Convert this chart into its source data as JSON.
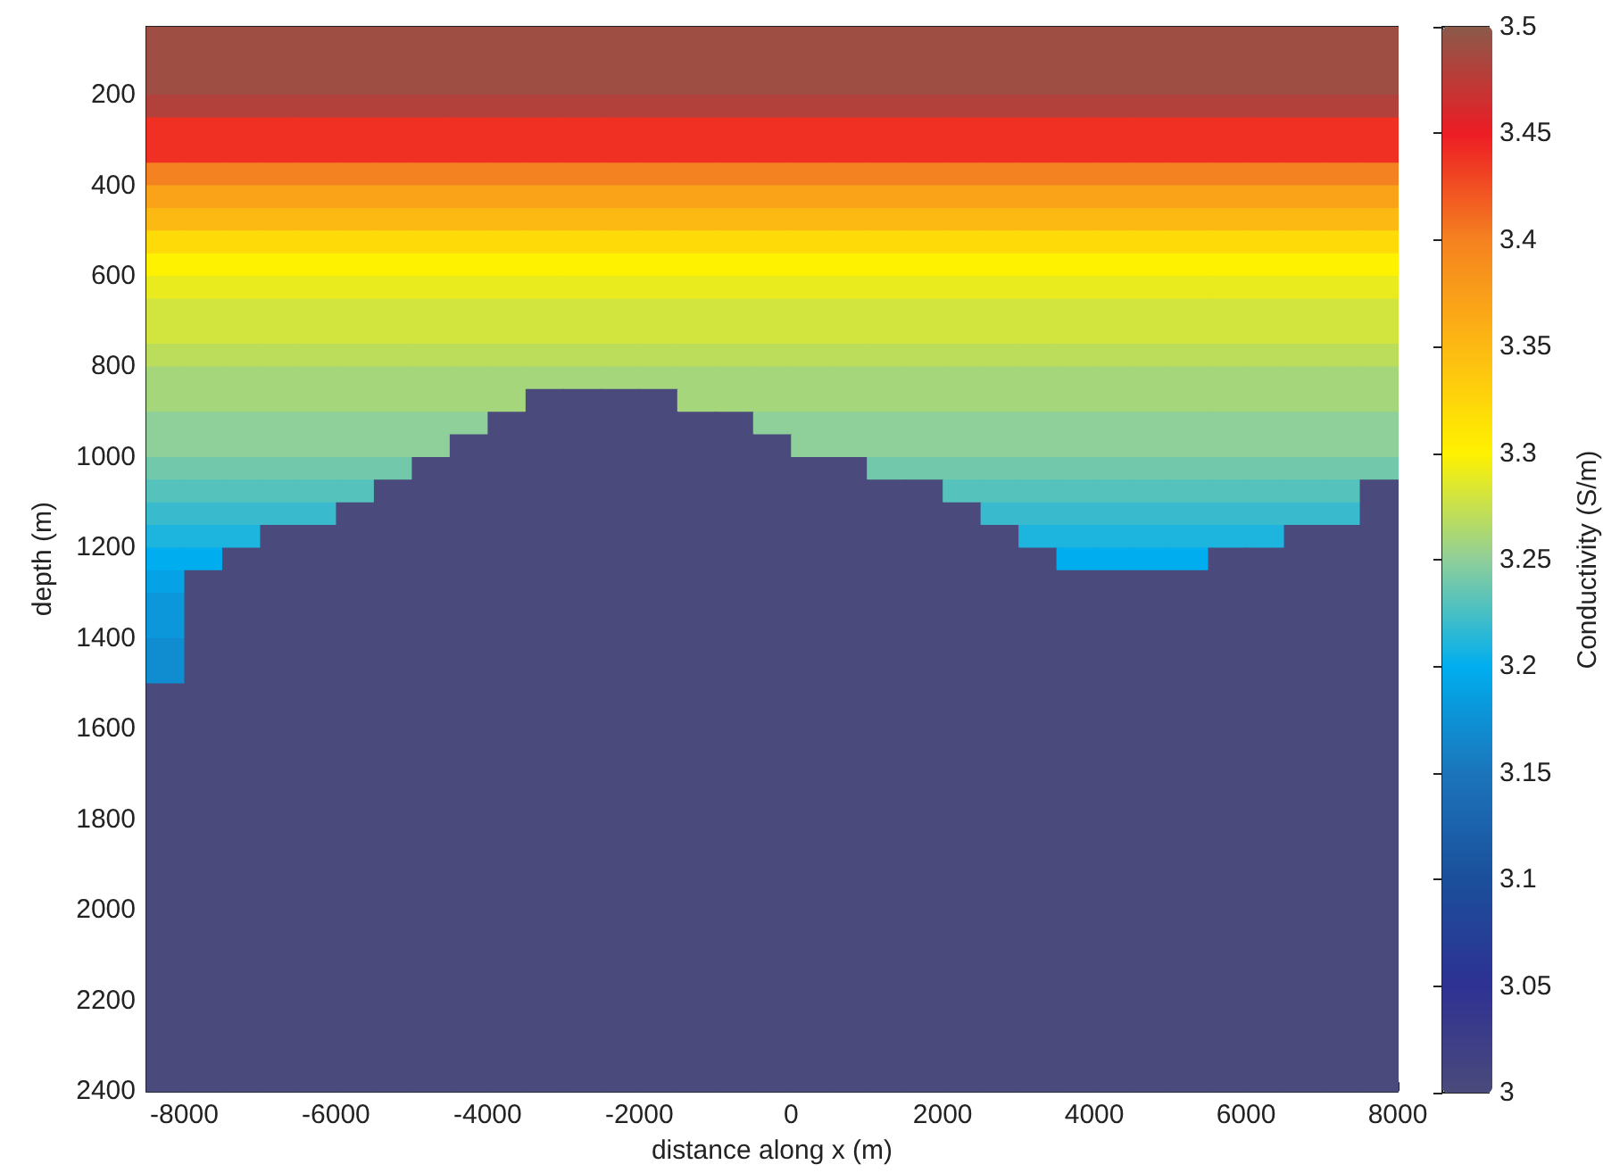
{
  "chart_data": {
    "type": "heatmap",
    "xlabel": "distance along x (m)",
    "ylabel": "depth (m)",
    "clabel": "Conductivity (S/m)",
    "xlim": [
      -8500,
      8000
    ],
    "xticks": [
      -8000,
      -6000,
      -4000,
      -2000,
      0,
      2000,
      4000,
      6000,
      8000
    ],
    "ylim": [
      2400,
      50
    ],
    "yticks": [
      200,
      400,
      600,
      800,
      1000,
      1200,
      1400,
      1600,
      1800,
      2000,
      2200,
      2400
    ],
    "clim": [
      3,
      3.5
    ],
    "cticks": [
      3,
      3.05,
      3.1,
      3.15,
      3.2,
      3.25,
      3.3,
      3.35,
      3.4,
      3.45,
      3.5
    ],
    "x": [
      -8250,
      -7750,
      -7250,
      -6750,
      -6250,
      -5750,
      -5250,
      -4750,
      -4250,
      -3750,
      -3250,
      -2750,
      -2250,
      -1750,
      -1250,
      -750,
      -250,
      250,
      750,
      1250,
      1750,
      2250,
      2750,
      3250,
      3750,
      4250,
      4750,
      5250,
      5750,
      6250,
      6750,
      7250,
      7750
    ],
    "y": [
      75,
      125,
      175,
      225,
      275,
      325,
      375,
      425,
      475,
      525,
      575,
      625,
      675,
      725,
      775,
      825,
      875,
      925,
      975,
      1025,
      1075,
      1125,
      1175,
      1225,
      1275,
      1325,
      1375,
      1425,
      1475,
      1525,
      1575,
      1625,
      1675,
      1725,
      1775,
      1825,
      1875,
      1925,
      1975,
      2025,
      2075,
      2125,
      2175,
      2225,
      2275,
      2325,
      2375
    ],
    "cells": [
      [
        3.49,
        3.49,
        3.49,
        3.49,
        3.49,
        3.49,
        3.49,
        3.49,
        3.49,
        3.49,
        3.49,
        3.49,
        3.49,
        3.49,
        3.49,
        3.49,
        3.49,
        3.49,
        3.49,
        3.49,
        3.49,
        3.49,
        3.49,
        3.49,
        3.49,
        3.49,
        3.49,
        3.49,
        3.49,
        3.49,
        3.49,
        3.49,
        3.49
      ],
      [
        3.49,
        3.49,
        3.49,
        3.49,
        3.49,
        3.49,
        3.49,
        3.49,
        3.49,
        3.49,
        3.49,
        3.49,
        3.49,
        3.49,
        3.49,
        3.49,
        3.49,
        3.49,
        3.49,
        3.49,
        3.49,
        3.49,
        3.49,
        3.49,
        3.49,
        3.49,
        3.49,
        3.49,
        3.49,
        3.49,
        3.49,
        3.49,
        3.49
      ],
      [
        3.49,
        3.49,
        3.49,
        3.49,
        3.49,
        3.49,
        3.49,
        3.49,
        3.49,
        3.49,
        3.49,
        3.49,
        3.49,
        3.49,
        3.49,
        3.49,
        3.49,
        3.49,
        3.49,
        3.49,
        3.49,
        3.49,
        3.49,
        3.49,
        3.49,
        3.49,
        3.49,
        3.49,
        3.49,
        3.49,
        3.49,
        3.49,
        3.49
      ],
      [
        3.48,
        3.48,
        3.48,
        3.48,
        3.48,
        3.48,
        3.48,
        3.48,
        3.48,
        3.48,
        3.48,
        3.48,
        3.48,
        3.48,
        3.48,
        3.48,
        3.48,
        3.48,
        3.48,
        3.48,
        3.48,
        3.48,
        3.48,
        3.48,
        3.48,
        3.48,
        3.48,
        3.48,
        3.48,
        3.48,
        3.48,
        3.48,
        3.48
      ],
      [
        3.44,
        3.44,
        3.44,
        3.44,
        3.44,
        3.44,
        3.44,
        3.44,
        3.44,
        3.44,
        3.44,
        3.44,
        3.44,
        3.44,
        3.44,
        3.44,
        3.44,
        3.44,
        3.44,
        3.44,
        3.44,
        3.44,
        3.44,
        3.44,
        3.44,
        3.44,
        3.44,
        3.44,
        3.44,
        3.44,
        3.44,
        3.44,
        3.44
      ],
      [
        3.44,
        3.44,
        3.44,
        3.44,
        3.44,
        3.44,
        3.44,
        3.44,
        3.44,
        3.44,
        3.44,
        3.44,
        3.44,
        3.44,
        3.44,
        3.44,
        3.44,
        3.44,
        3.44,
        3.44,
        3.44,
        3.44,
        3.44,
        3.44,
        3.44,
        3.44,
        3.44,
        3.44,
        3.44,
        3.44,
        3.44,
        3.44,
        3.44
      ],
      [
        3.4,
        3.4,
        3.4,
        3.4,
        3.4,
        3.4,
        3.4,
        3.4,
        3.4,
        3.4,
        3.4,
        3.4,
        3.4,
        3.4,
        3.4,
        3.4,
        3.4,
        3.4,
        3.4,
        3.4,
        3.4,
        3.4,
        3.4,
        3.4,
        3.4,
        3.4,
        3.4,
        3.4,
        3.4,
        3.4,
        3.4,
        3.4,
        3.4
      ],
      [
        3.37,
        3.37,
        3.37,
        3.37,
        3.37,
        3.37,
        3.37,
        3.37,
        3.37,
        3.37,
        3.37,
        3.37,
        3.37,
        3.37,
        3.37,
        3.37,
        3.37,
        3.37,
        3.37,
        3.37,
        3.37,
        3.37,
        3.37,
        3.37,
        3.37,
        3.37,
        3.37,
        3.37,
        3.37,
        3.37,
        3.37,
        3.37,
        3.37
      ],
      [
        3.35,
        3.35,
        3.35,
        3.35,
        3.35,
        3.35,
        3.35,
        3.35,
        3.35,
        3.35,
        3.35,
        3.35,
        3.35,
        3.35,
        3.35,
        3.35,
        3.35,
        3.35,
        3.35,
        3.35,
        3.35,
        3.35,
        3.35,
        3.35,
        3.35,
        3.35,
        3.35,
        3.35,
        3.35,
        3.35,
        3.35,
        3.35,
        3.35
      ],
      [
        3.32,
        3.32,
        3.32,
        3.32,
        3.32,
        3.32,
        3.32,
        3.32,
        3.32,
        3.32,
        3.32,
        3.32,
        3.32,
        3.32,
        3.32,
        3.32,
        3.32,
        3.32,
        3.32,
        3.32,
        3.32,
        3.32,
        3.32,
        3.32,
        3.32,
        3.32,
        3.32,
        3.32,
        3.32,
        3.32,
        3.32,
        3.32,
        3.32
      ],
      [
        3.3,
        3.3,
        3.3,
        3.3,
        3.3,
        3.3,
        3.3,
        3.3,
        3.3,
        3.3,
        3.3,
        3.3,
        3.3,
        3.3,
        3.3,
        3.3,
        3.3,
        3.3,
        3.3,
        3.3,
        3.3,
        3.3,
        3.3,
        3.3,
        3.3,
        3.3,
        3.3,
        3.3,
        3.3,
        3.3,
        3.3,
        3.3,
        3.3
      ],
      [
        3.29,
        3.29,
        3.29,
        3.29,
        3.29,
        3.29,
        3.29,
        3.29,
        3.29,
        3.29,
        3.29,
        3.29,
        3.29,
        3.29,
        3.29,
        3.29,
        3.29,
        3.29,
        3.29,
        3.29,
        3.29,
        3.29,
        3.29,
        3.29,
        3.29,
        3.29,
        3.29,
        3.29,
        3.29,
        3.29,
        3.29,
        3.29,
        3.29
      ],
      [
        3.28,
        3.28,
        3.28,
        3.28,
        3.28,
        3.28,
        3.28,
        3.28,
        3.28,
        3.28,
        3.28,
        3.28,
        3.28,
        3.28,
        3.28,
        3.28,
        3.28,
        3.28,
        3.28,
        3.28,
        3.28,
        3.28,
        3.28,
        3.28,
        3.28,
        3.28,
        3.28,
        3.28,
        3.28,
        3.28,
        3.28,
        3.28,
        3.28
      ],
      [
        3.28,
        3.28,
        3.28,
        3.28,
        3.28,
        3.28,
        3.28,
        3.28,
        3.28,
        3.28,
        3.28,
        3.28,
        3.28,
        3.28,
        3.28,
        3.28,
        3.28,
        3.28,
        3.28,
        3.28,
        3.28,
        3.28,
        3.28,
        3.28,
        3.28,
        3.28,
        3.28,
        3.28,
        3.28,
        3.28,
        3.28,
        3.28,
        3.28
      ],
      [
        3.27,
        3.27,
        3.27,
        3.27,
        3.27,
        3.27,
        3.27,
        3.27,
        3.27,
        3.27,
        3.27,
        3.27,
        3.27,
        3.27,
        3.27,
        3.27,
        3.27,
        3.27,
        3.27,
        3.27,
        3.27,
        3.27,
        3.27,
        3.27,
        3.27,
        3.27,
        3.27,
        3.27,
        3.27,
        3.27,
        3.27,
        3.27,
        3.27
      ],
      [
        3.26,
        3.26,
        3.26,
        3.26,
        3.26,
        3.26,
        3.26,
        3.26,
        3.26,
        3.26,
        3.26,
        3.26,
        3.26,
        3.26,
        3.26,
        3.26,
        3.26,
        3.26,
        3.26,
        3.26,
        3.26,
        3.26,
        3.26,
        3.26,
        3.26,
        3.26,
        3.26,
        3.26,
        3.26,
        3.26,
        3.26,
        3.26,
        3.26
      ],
      [
        3.26,
        3.26,
        3.26,
        3.26,
        3.26,
        3.26,
        3.26,
        3.26,
        3.26,
        3.26,
        3,
        3,
        3,
        3,
        3.26,
        3.26,
        3.26,
        3.26,
        3.26,
        3.26,
        3.26,
        3.26,
        3.26,
        3.26,
        3.26,
        3.26,
        3.26,
        3.26,
        3.26,
        3.26,
        3.26,
        3.26,
        3.26
      ],
      [
        3.25,
        3.25,
        3.25,
        3.25,
        3.25,
        3.25,
        3.25,
        3.25,
        3.25,
        3,
        3,
        3,
        3,
        3,
        3,
        3,
        3.25,
        3.25,
        3.25,
        3.25,
        3.25,
        3.25,
        3.25,
        3.25,
        3.25,
        3.25,
        3.25,
        3.25,
        3.25,
        3.25,
        3.25,
        3.25,
        3.25
      ],
      [
        3.25,
        3.25,
        3.25,
        3.25,
        3.25,
        3.25,
        3.25,
        3.25,
        3,
        3,
        3,
        3,
        3,
        3,
        3,
        3,
        3,
        3.25,
        3.25,
        3.25,
        3.25,
        3.25,
        3.25,
        3.25,
        3.25,
        3.25,
        3.25,
        3.25,
        3.25,
        3.25,
        3.25,
        3.25,
        3.25
      ],
      [
        3.24,
        3.24,
        3.24,
        3.24,
        3.24,
        3.24,
        3.24,
        3,
        3,
        3,
        3,
        3,
        3,
        3,
        3,
        3,
        3,
        3,
        3,
        3.24,
        3.24,
        3.24,
        3.24,
        3.24,
        3.24,
        3.24,
        3.24,
        3.24,
        3.24,
        3.24,
        3.24,
        3.24,
        3.24
      ],
      [
        3.23,
        3.23,
        3.23,
        3.23,
        3.23,
        3.23,
        3,
        3,
        3,
        3,
        3,
        3,
        3,
        3,
        3,
        3,
        3,
        3,
        3,
        3,
        3,
        3.23,
        3.23,
        3.23,
        3.23,
        3.23,
        3.23,
        3.23,
        3.23,
        3.23,
        3.23,
        3.23,
        3
      ],
      [
        3.22,
        3.22,
        3.22,
        3.22,
        3.22,
        3,
        3,
        3,
        3,
        3,
        3,
        3,
        3,
        3,
        3,
        3,
        3,
        3,
        3,
        3,
        3,
        3,
        3.22,
        3.22,
        3.22,
        3.22,
        3.22,
        3.22,
        3.22,
        3.22,
        3.22,
        3.22,
        3
      ],
      [
        3.21,
        3.21,
        3.21,
        3,
        3,
        3,
        3,
        3,
        3,
        3,
        3,
        3,
        3,
        3,
        3,
        3,
        3,
        3,
        3,
        3,
        3,
        3,
        3,
        3.21,
        3.21,
        3.21,
        3.21,
        3.21,
        3.21,
        3.21,
        3,
        3,
        3
      ],
      [
        3.2,
        3.2,
        3,
        3,
        3,
        3,
        3,
        3,
        3,
        3,
        3,
        3,
        3,
        3,
        3,
        3,
        3,
        3,
        3,
        3,
        3,
        3,
        3,
        3,
        3.2,
        3.2,
        3.2,
        3.2,
        3,
        3,
        3,
        3,
        3
      ],
      [
        3.19,
        3,
        3,
        3,
        3,
        3,
        3,
        3,
        3,
        3,
        3,
        3,
        3,
        3,
        3,
        3,
        3,
        3,
        3,
        3,
        3,
        3,
        3,
        3,
        3,
        3,
        3,
        3,
        3,
        3,
        3,
        3,
        3
      ],
      [
        3.18,
        3,
        3,
        3,
        3,
        3,
        3,
        3,
        3,
        3,
        3,
        3,
        3,
        3,
        3,
        3,
        3,
        3,
        3,
        3,
        3,
        3,
        3,
        3,
        3,
        3,
        3,
        3,
        3,
        3,
        3,
        3,
        3
      ],
      [
        3.18,
        3,
        3,
        3,
        3,
        3,
        3,
        3,
        3,
        3,
        3,
        3,
        3,
        3,
        3,
        3,
        3,
        3,
        3,
        3,
        3,
        3,
        3,
        3,
        3,
        3,
        3,
        3,
        3,
        3,
        3,
        3,
        3
      ],
      [
        3.17,
        3,
        3,
        3,
        3,
        3,
        3,
        3,
        3,
        3,
        3,
        3,
        3,
        3,
        3,
        3,
        3,
        3,
        3,
        3,
        3,
        3,
        3,
        3,
        3,
        3,
        3,
        3,
        3,
        3,
        3,
        3,
        3
      ],
      [
        3.17,
        3,
        3,
        3,
        3,
        3,
        3,
        3,
        3,
        3,
        3,
        3,
        3,
        3,
        3,
        3,
        3,
        3,
        3,
        3,
        3,
        3,
        3,
        3,
        3,
        3,
        3,
        3,
        3,
        3,
        3,
        3,
        3
      ],
      [
        3,
        3,
        3,
        3,
        3,
        3,
        3,
        3,
        3,
        3,
        3,
        3,
        3,
        3,
        3,
        3,
        3,
        3,
        3,
        3,
        3,
        3,
        3,
        3,
        3,
        3,
        3,
        3,
        3,
        3,
        3,
        3,
        3
      ],
      [
        3,
        3,
        3,
        3,
        3,
        3,
        3,
        3,
        3,
        3,
        3,
        3,
        3,
        3,
        3,
        3,
        3,
        3,
        3,
        3,
        3,
        3,
        3,
        3,
        3,
        3,
        3,
        3,
        3,
        3,
        3,
        3,
        3
      ],
      [
        3,
        3,
        3,
        3,
        3,
        3,
        3,
        3,
        3,
        3,
        3,
        3,
        3,
        3,
        3,
        3,
        3,
        3,
        3,
        3,
        3,
        3,
        3,
        3,
        3,
        3,
        3,
        3,
        3,
        3,
        3,
        3,
        3
      ],
      [
        3,
        3,
        3,
        3,
        3,
        3,
        3,
        3,
        3,
        3,
        3,
        3,
        3,
        3,
        3,
        3,
        3,
        3,
        3,
        3,
        3,
        3,
        3,
        3,
        3,
        3,
        3,
        3,
        3,
        3,
        3,
        3,
        3
      ],
      [
        3,
        3,
        3,
        3,
        3,
        3,
        3,
        3,
        3,
        3,
        3,
        3,
        3,
        3,
        3,
        3,
        3,
        3,
        3,
        3,
        3,
        3,
        3,
        3,
        3,
        3,
        3,
        3,
        3,
        3,
        3,
        3,
        3
      ],
      [
        3,
        3,
        3,
        3,
        3,
        3,
        3,
        3,
        3,
        3,
        3,
        3,
        3,
        3,
        3,
        3,
        3,
        3,
        3,
        3,
        3,
        3,
        3,
        3,
        3,
        3,
        3,
        3,
        3,
        3,
        3,
        3,
        3
      ],
      [
        3,
        3,
        3,
        3,
        3,
        3,
        3,
        3,
        3,
        3,
        3,
        3,
        3,
        3,
        3,
        3,
        3,
        3,
        3,
        3,
        3,
        3,
        3,
        3,
        3,
        3,
        3,
        3,
        3,
        3,
        3,
        3,
        3
      ],
      [
        3,
        3,
        3,
        3,
        3,
        3,
        3,
        3,
        3,
        3,
        3,
        3,
        3,
        3,
        3,
        3,
        3,
        3,
        3,
        3,
        3,
        3,
        3,
        3,
        3,
        3,
        3,
        3,
        3,
        3,
        3,
        3,
        3
      ],
      [
        3,
        3,
        3,
        3,
        3,
        3,
        3,
        3,
        3,
        3,
        3,
        3,
        3,
        3,
        3,
        3,
        3,
        3,
        3,
        3,
        3,
        3,
        3,
        3,
        3,
        3,
        3,
        3,
        3,
        3,
        3,
        3,
        3
      ],
      [
        3,
        3,
        3,
        3,
        3,
        3,
        3,
        3,
        3,
        3,
        3,
        3,
        3,
        3,
        3,
        3,
        3,
        3,
        3,
        3,
        3,
        3,
        3,
        3,
        3,
        3,
        3,
        3,
        3,
        3,
        3,
        3,
        3
      ],
      [
        3,
        3,
        3,
        3,
        3,
        3,
        3,
        3,
        3,
        3,
        3,
        3,
        3,
        3,
        3,
        3,
        3,
        3,
        3,
        3,
        3,
        3,
        3,
        3,
        3,
        3,
        3,
        3,
        3,
        3,
        3,
        3,
        3
      ],
      [
        3,
        3,
        3,
        3,
        3,
        3,
        3,
        3,
        3,
        3,
        3,
        3,
        3,
        3,
        3,
        3,
        3,
        3,
        3,
        3,
        3,
        3,
        3,
        3,
        3,
        3,
        3,
        3,
        3,
        3,
        3,
        3,
        3
      ],
      [
        3,
        3,
        3,
        3,
        3,
        3,
        3,
        3,
        3,
        3,
        3,
        3,
        3,
        3,
        3,
        3,
        3,
        3,
        3,
        3,
        3,
        3,
        3,
        3,
        3,
        3,
        3,
        3,
        3,
        3,
        3,
        3,
        3
      ],
      [
        3,
        3,
        3,
        3,
        3,
        3,
        3,
        3,
        3,
        3,
        3,
        3,
        3,
        3,
        3,
        3,
        3,
        3,
        3,
        3,
        3,
        3,
        3,
        3,
        3,
        3,
        3,
        3,
        3,
        3,
        3,
        3,
        3
      ],
      [
        3,
        3,
        3,
        3,
        3,
        3,
        3,
        3,
        3,
        3,
        3,
        3,
        3,
        3,
        3,
        3,
        3,
        3,
        3,
        3,
        3,
        3,
        3,
        3,
        3,
        3,
        3,
        3,
        3,
        3,
        3,
        3,
        3
      ],
      [
        3,
        3,
        3,
        3,
        3,
        3,
        3,
        3,
        3,
        3,
        3,
        3,
        3,
        3,
        3,
        3,
        3,
        3,
        3,
        3,
        3,
        3,
        3,
        3,
        3,
        3,
        3,
        3,
        3,
        3,
        3,
        3,
        3
      ],
      [
        3,
        3,
        3,
        3,
        3,
        3,
        3,
        3,
        3,
        3,
        3,
        3,
        3,
        3,
        3,
        3,
        3,
        3,
        3,
        3,
        3,
        3,
        3,
        3,
        3,
        3,
        3,
        3,
        3,
        3,
        3,
        3,
        3
      ],
      [
        3,
        3,
        3,
        3,
        3,
        3,
        3,
        3,
        3,
        3,
        3,
        3,
        3,
        3,
        3,
        3,
        3,
        3,
        3,
        3,
        3,
        3,
        3,
        3,
        3,
        3,
        3,
        3,
        3,
        3,
        3,
        3,
        3
      ]
    ]
  }
}
